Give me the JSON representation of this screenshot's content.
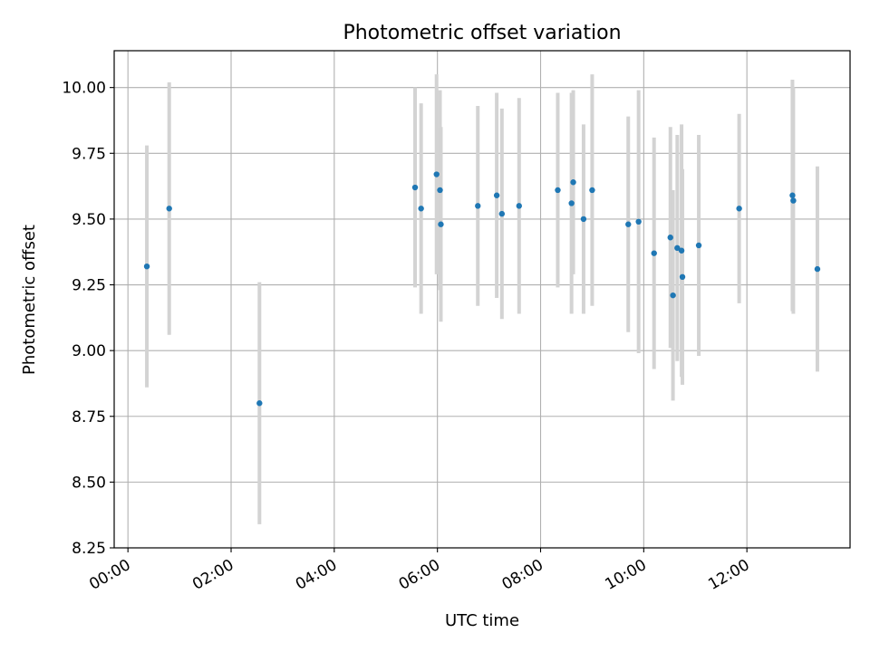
{
  "chart_data": {
    "type": "scatter",
    "title": "Photometric offset variation",
    "xlabel": "UTC time",
    "ylabel": "Photometric offset",
    "x_unit": "hours (UTC)",
    "xlim": [
      "-00:16",
      "14:00"
    ],
    "ylim": [
      8.25,
      10.14
    ],
    "x_ticks": [
      "00:00",
      "02:00",
      "04:00",
      "06:00",
      "08:00",
      "10:00",
      "12:00"
    ],
    "y_ticks": [
      "8.25",
      "8.50",
      "8.75",
      "9.00",
      "9.25",
      "9.50",
      "9.75",
      "10.00"
    ],
    "grid": true,
    "point_color": "#1f77b4",
    "errorbar_color": "#d3d3d3",
    "points": [
      {
        "x": "00:22",
        "y": 9.32,
        "yerr": 0.46
      },
      {
        "x": "00:48",
        "y": 9.54,
        "yerr": 0.48
      },
      {
        "x": "02:33",
        "y": 8.8,
        "yerr": 0.46
      },
      {
        "x": "05:34",
        "y": 9.62,
        "yerr": 0.38
      },
      {
        "x": "05:41",
        "y": 9.54,
        "yerr": 0.4
      },
      {
        "x": "05:59",
        "y": 9.67,
        "yerr": 0.38
      },
      {
        "x": "06:03",
        "y": 9.61,
        "yerr": 0.38
      },
      {
        "x": "06:04",
        "y": 9.48,
        "yerr": 0.37
      },
      {
        "x": "06:47",
        "y": 9.55,
        "yerr": 0.38
      },
      {
        "x": "07:09",
        "y": 9.59,
        "yerr": 0.39
      },
      {
        "x": "07:15",
        "y": 9.52,
        "yerr": 0.4
      },
      {
        "x": "07:35",
        "y": 9.55,
        "yerr": 0.41
      },
      {
        "x": "08:20",
        "y": 9.61,
        "yerr": 0.37
      },
      {
        "x": "08:36",
        "y": 9.56,
        "yerr": 0.42
      },
      {
        "x": "08:38",
        "y": 9.64,
        "yerr": 0.35
      },
      {
        "x": "08:50",
        "y": 9.5,
        "yerr": 0.36
      },
      {
        "x": "09:00",
        "y": 9.61,
        "yerr": 0.44
      },
      {
        "x": "09:42",
        "y": 9.48,
        "yerr": 0.41
      },
      {
        "x": "09:54",
        "y": 9.49,
        "yerr": 0.5
      },
      {
        "x": "10:12",
        "y": 9.37,
        "yerr": 0.44
      },
      {
        "x": "10:31",
        "y": 9.43,
        "yerr": 0.42
      },
      {
        "x": "10:34",
        "y": 9.21,
        "yerr": 0.4
      },
      {
        "x": "10:39",
        "y": 9.39,
        "yerr": 0.43
      },
      {
        "x": "10:44",
        "y": 9.38,
        "yerr": 0.48
      },
      {
        "x": "10:45",
        "y": 9.28,
        "yerr": 0.41
      },
      {
        "x": "11:04",
        "y": 9.4,
        "yerr": 0.42
      },
      {
        "x": "11:51",
        "y": 9.54,
        "yerr": 0.36
      },
      {
        "x": "12:53",
        "y": 9.59,
        "yerr": 0.44
      },
      {
        "x": "12:54",
        "y": 9.57,
        "yerr": 0.43
      },
      {
        "x": "13:22",
        "y": 9.31,
        "yerr": 0.39
      }
    ]
  }
}
